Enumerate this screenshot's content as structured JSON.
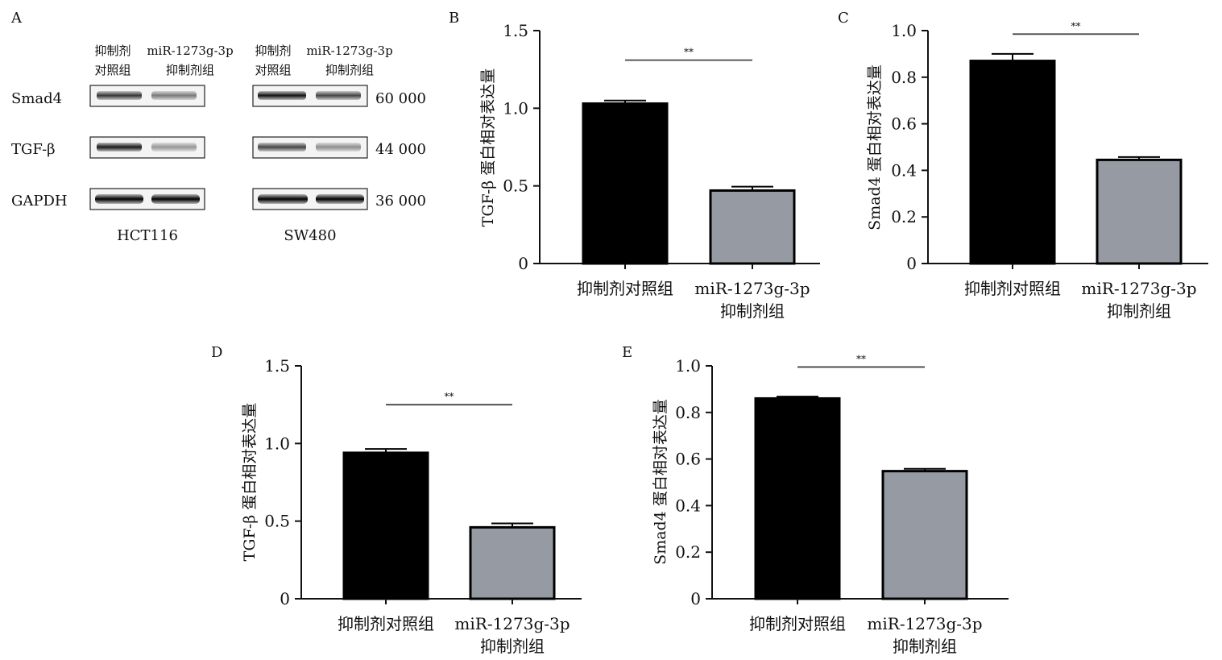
{
  "figure": {
    "panel_a": {
      "letter": "A",
      "lanes": [
        {
          "line1": "抑制剂",
          "line2": "对照组"
        },
        {
          "line1": "miR-1273g-3p",
          "line2": "抑制剂组"
        },
        {
          "line1": "抑制剂",
          "line2": "对照组"
        },
        {
          "line1": "miR-1273g-3p",
          "line2": "抑制剂组"
        }
      ],
      "rows": [
        {
          "protein": "Smad4",
          "mw": "60 000",
          "intensity": [
            0.78,
            0.5,
            0.92,
            0.72
          ]
        },
        {
          "protein": "TGF-β",
          "mw": "44 000",
          "intensity": [
            0.9,
            0.38,
            0.72,
            0.42
          ]
        },
        {
          "protein": "GAPDH",
          "mw": "36 000",
          "intensity": [
            1.0,
            1.0,
            1.0,
            1.0
          ]
        }
      ],
      "cell_lines": [
        "HCT116",
        "SW480"
      ]
    }
  },
  "chart_data": [
    {
      "panel": "B",
      "type": "bar",
      "categories": [
        [
          "抑制剂对照组"
        ],
        [
          "miR-1273g-3p",
          "抑制剂组"
        ]
      ],
      "values": [
        1.03,
        0.47
      ],
      "errors": [
        0.02,
        0.025
      ],
      "colors": [
        "#000000",
        "#969aa3"
      ],
      "ylabel": "TGF-β 蛋白相对表达量",
      "ylim": [
        0,
        1.5
      ],
      "yticks": [
        0,
        0.5,
        1.0,
        1.5
      ],
      "ytick_labels": [
        "0",
        "0.5",
        "1.0",
        "1.5"
      ],
      "significance": "**",
      "sig_y": 1.31
    },
    {
      "panel": "C",
      "type": "bar",
      "categories": [
        [
          "抑制剂对照组"
        ],
        [
          "miR-1273g-3p",
          "抑制剂组"
        ]
      ],
      "values": [
        0.87,
        0.445
      ],
      "errors": [
        0.03,
        0.012
      ],
      "colors": [
        "#000000",
        "#969aa3"
      ],
      "ylabel": "Smad4 蛋白相对表达量",
      "ylim": [
        0,
        1.0
      ],
      "yticks": [
        0,
        0.2,
        0.4,
        0.6,
        0.8,
        1.0
      ],
      "ytick_labels": [
        "0",
        "0.2",
        "0.4",
        "0.6",
        "0.8",
        "1.0"
      ],
      "significance": "**",
      "sig_y": 0.985
    },
    {
      "panel": "D",
      "type": "bar",
      "categories": [
        [
          "抑制剂对照组"
        ],
        [
          "miR-1273g-3p",
          "抑制剂组"
        ]
      ],
      "values": [
        0.94,
        0.46
      ],
      "errors": [
        0.025,
        0.025
      ],
      "colors": [
        "#000000",
        "#969aa3"
      ],
      "ylabel": "TGF-β 蛋白相对表达量",
      "ylim": [
        0,
        1.5
      ],
      "yticks": [
        0,
        0.5,
        1.0,
        1.5
      ],
      "ytick_labels": [
        "0",
        "0.5",
        "1.0",
        "1.5"
      ],
      "significance": "**",
      "sig_y": 1.25
    },
    {
      "panel": "E",
      "type": "bar",
      "categories": [
        [
          "抑制剂对照组"
        ],
        [
          "miR-1273g-3p",
          "抑制剂组"
        ]
      ],
      "values": [
        0.86,
        0.548
      ],
      "errors": [
        0.008,
        0.01
      ],
      "colors": [
        "#000000",
        "#969aa3"
      ],
      "ylabel": "Smad4 蛋白相对表达量",
      "ylim": [
        0,
        1.0
      ],
      "yticks": [
        0,
        0.2,
        0.4,
        0.6,
        0.8,
        1.0
      ],
      "ytick_labels": [
        "0",
        "0.2",
        "0.4",
        "0.6",
        "0.8",
        "1.0"
      ],
      "significance": "**",
      "sig_y": 0.995
    }
  ]
}
